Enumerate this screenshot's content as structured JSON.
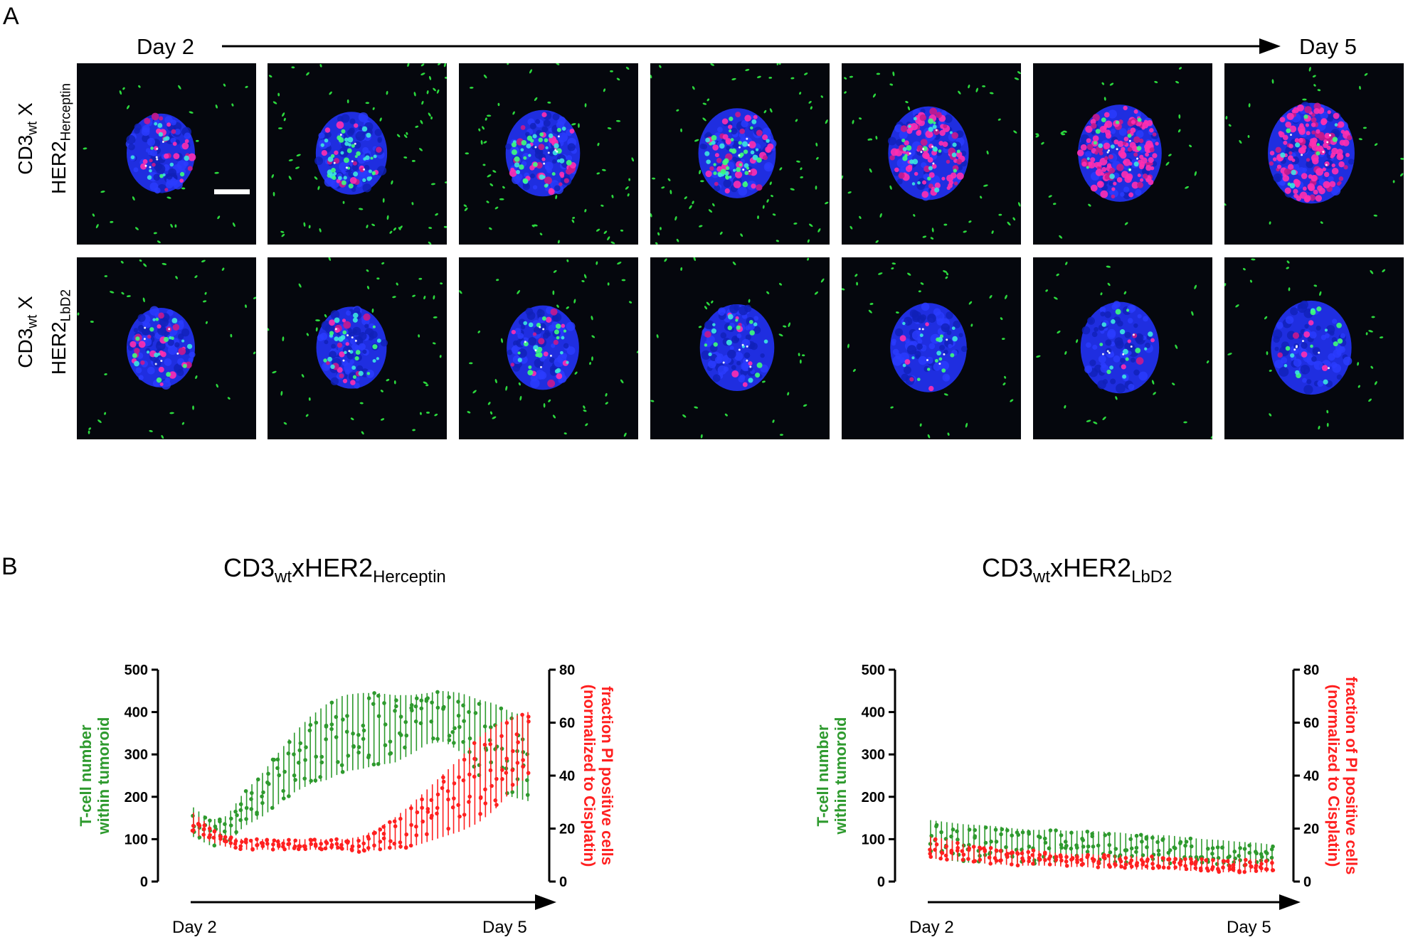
{
  "panel_a": {
    "letter": "A",
    "day_start": "Day 2",
    "day_end": "Day 5",
    "rows": [
      {
        "label_main": "CD3",
        "label_sub": "wt",
        "label_suffix": " X",
        "label_line2_main": "HER2",
        "label_line2_sub": "Herceptin",
        "pink_level": [
          0.15,
          0.1,
          0.2,
          0.25,
          0.5,
          0.8,
          0.9
        ],
        "green_density": [
          0.3,
          0.9,
          0.8,
          1.0,
          0.6,
          0.3,
          0.25
        ]
      },
      {
        "label_main": "CD3",
        "label_sub": "wt",
        "label_suffix": " X",
        "label_line2_main": "HER2",
        "label_line2_sub": "LbD2",
        "pink_level": [
          0.15,
          0.1,
          0.08,
          0.05,
          0.03,
          0.03,
          0.04
        ],
        "green_density": [
          0.4,
          0.55,
          0.5,
          0.4,
          0.35,
          0.3,
          0.3
        ]
      }
    ]
  },
  "panel_b": {
    "letter": "B",
    "colors": {
      "tcell": "#2e9a2e",
      "pi": "#ff2020"
    },
    "charts": [
      {
        "title_main": "CD3",
        "title_sub1": "wt",
        "title_mid": "xHER2",
        "title_sub2": "Herceptin",
        "ylabel_left_line1": "T-cell number",
        "ylabel_left_line2": "within tumoroid",
        "ylabel_right_line1": "fraction PI positive cells",
        "ylabel_right_line2": "(normalized to Cisplatin)",
        "day_start": "Day 2",
        "day_end": "Day 5"
      },
      {
        "title_main": "CD3",
        "title_sub1": "wt",
        "title_mid": "xHER2",
        "title_sub2": "LbD2",
        "ylabel_left_line1": "T-cell number",
        "ylabel_left_line2": "within tumoroid",
        "ylabel_right_line1": "fraction of PI positive cells",
        "ylabel_right_line2": "(normalized to Cisplatin)",
        "day_start": "Day 2",
        "day_end": "Day 5"
      }
    ]
  },
  "chart_data": [
    {
      "type": "scatter",
      "title": "CD3wtxHER2Herceptin",
      "xlabel": "",
      "x_range": [
        "Day 2",
        "Day 5"
      ],
      "ylabel_left": "T-cell number within tumoroid",
      "ylabel_right": "fraction PI positive cells (normalized to Cisplatin)",
      "ylim_left": [
        0,
        500
      ],
      "ylim_right": [
        0,
        80
      ],
      "yticks_left": [
        0,
        100,
        200,
        300,
        400,
        500
      ],
      "yticks_right": [
        0,
        20,
        40,
        60,
        80
      ],
      "series": [
        {
          "name": "T-cell number within tumoroid",
          "axis": "left",
          "time_fraction": [
            0.0,
            0.05,
            0.1,
            0.15,
            0.2,
            0.25,
            0.3,
            0.35,
            0.4,
            0.45,
            0.5,
            0.55,
            0.6,
            0.65,
            0.7,
            0.75,
            0.8,
            0.85,
            0.9,
            0.95,
            1.0
          ],
          "mean": [
            140,
            115,
            120,
            170,
            200,
            240,
            280,
            310,
            330,
            350,
            355,
            360,
            360,
            370,
            385,
            390,
            375,
            340,
            320,
            300,
            290
          ],
          "spread": [
            35,
            30,
            35,
            40,
            50,
            60,
            70,
            80,
            90,
            90,
            90,
            85,
            80,
            70,
            60,
            60,
            70,
            90,
            100,
            100,
            100
          ]
        },
        {
          "name": "fraction PI positive cells",
          "axis": "right",
          "time_fraction": [
            0.0,
            0.05,
            0.1,
            0.15,
            0.2,
            0.25,
            0.3,
            0.35,
            0.4,
            0.45,
            0.5,
            0.55,
            0.6,
            0.65,
            0.7,
            0.75,
            0.8,
            0.85,
            0.9,
            0.95,
            1.0
          ],
          "mean": [
            22,
            18,
            15,
            14,
            14,
            14,
            14,
            14,
            14,
            14,
            14,
            16,
            18,
            21,
            25,
            29,
            33,
            38,
            43,
            48,
            52
          ],
          "spread": [
            4,
            3,
            2,
            2,
            2,
            2,
            2,
            2,
            2,
            2,
            3,
            4,
            6,
            8,
            10,
            12,
            14,
            16,
            16,
            14,
            12
          ]
        }
      ]
    },
    {
      "type": "scatter",
      "title": "CD3wtxHER2LbD2",
      "xlabel": "",
      "x_range": [
        "Day 2",
        "Day 5"
      ],
      "ylabel_left": "T-cell number within tumoroid",
      "ylabel_right": "fraction of PI positive cells (normalized to Cisplatin)",
      "ylim_left": [
        0,
        500
      ],
      "ylim_right": [
        0,
        80
      ],
      "yticks_left": [
        0,
        100,
        200,
        300,
        400,
        500
      ],
      "yticks_right": [
        0,
        20,
        40,
        60,
        80
      ],
      "series": [
        {
          "name": "T-cell number within tumoroid",
          "axis": "left",
          "time_fraction": [
            0.0,
            0.05,
            0.1,
            0.15,
            0.2,
            0.25,
            0.3,
            0.35,
            0.4,
            0.45,
            0.5,
            0.55,
            0.6,
            0.65,
            0.7,
            0.75,
            0.8,
            0.85,
            0.9,
            0.95,
            1.0
          ],
          "mean": [
            100,
            95,
            90,
            88,
            85,
            85,
            82,
            82,
            80,
            80,
            80,
            78,
            76,
            75,
            74,
            72,
            70,
            68,
            66,
            64,
            62
          ],
          "spread": [
            45,
            45,
            45,
            45,
            45,
            40,
            40,
            40,
            40,
            40,
            38,
            38,
            35,
            35,
            35,
            32,
            30,
            30,
            28,
            28,
            25
          ]
        },
        {
          "name": "fraction of PI positive cells",
          "axis": "right",
          "time_fraction": [
            0.0,
            0.05,
            0.1,
            0.15,
            0.2,
            0.25,
            0.3,
            0.35,
            0.4,
            0.45,
            0.5,
            0.55,
            0.6,
            0.65,
            0.7,
            0.75,
            0.8,
            0.85,
            0.9,
            0.95,
            1.0
          ],
          "mean": [
            13,
            12,
            11,
            10,
            9.5,
            9,
            9,
            8.5,
            8,
            8,
            7.5,
            7.5,
            7,
            7,
            7,
            6.5,
            6.5,
            6,
            6,
            6,
            6
          ],
          "spread": [
            4,
            4,
            3,
            3,
            3,
            3,
            3,
            2.5,
            2.5,
            2.5,
            2.5,
            2.5,
            2.5,
            2.5,
            2.5,
            2.5,
            2.5,
            2.5,
            2.5,
            2.5,
            2.5
          ]
        }
      ]
    }
  ]
}
